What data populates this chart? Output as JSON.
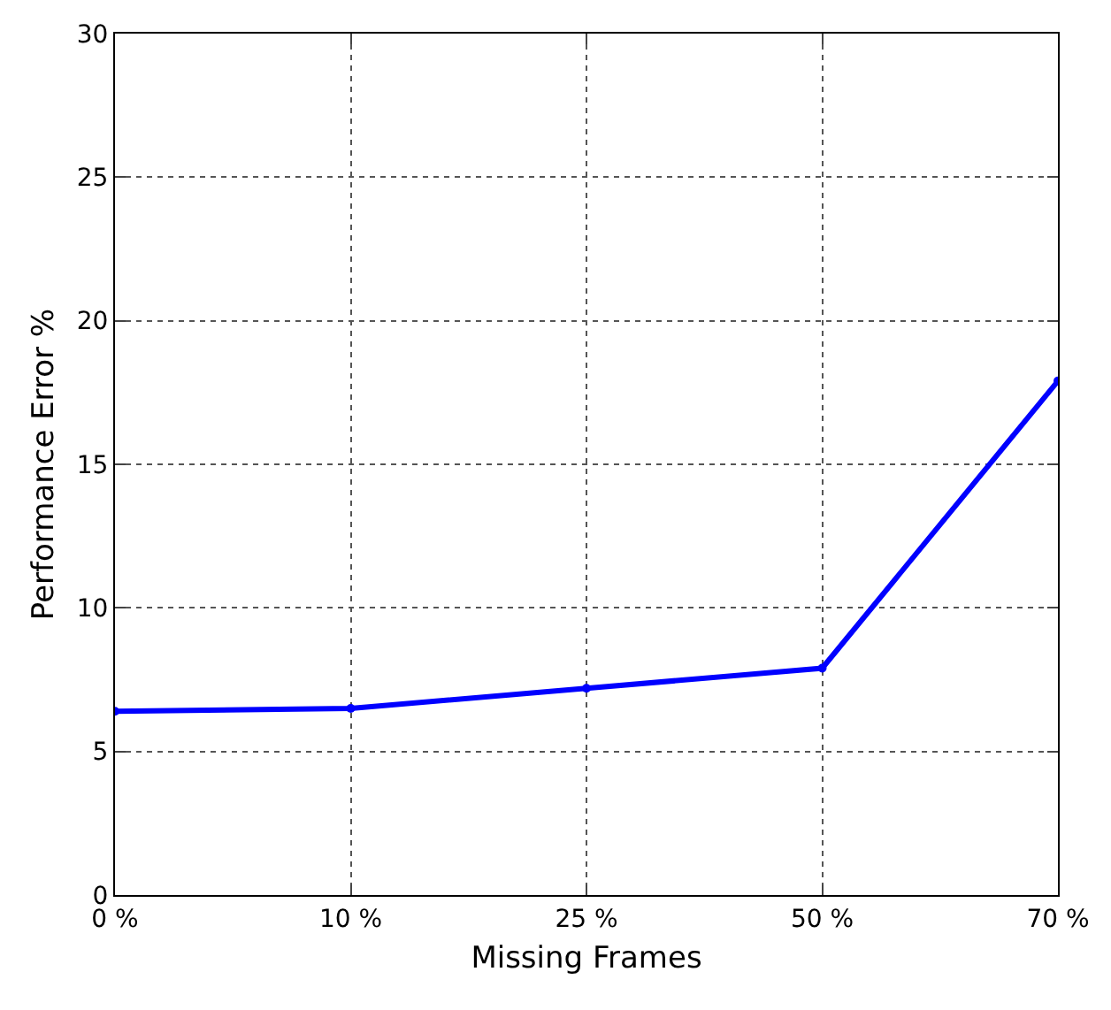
{
  "chart_data": {
    "type": "line",
    "xlabel": "Missing Frames",
    "ylabel": "Performance Error %",
    "categories": [
      "0 %",
      "10 %",
      "25 %",
      "50 %",
      "70 %"
    ],
    "series": [
      {
        "color": "#0000ff",
        "values": [
          6.4,
          6.5,
          7.2,
          7.9,
          17.9
        ]
      }
    ],
    "ylim": [
      0,
      30
    ],
    "yticks": [
      0,
      5,
      10,
      15,
      20,
      25,
      30
    ],
    "grid": true,
    "marker": "circle",
    "line_style": "solid",
    "legend": false
  }
}
